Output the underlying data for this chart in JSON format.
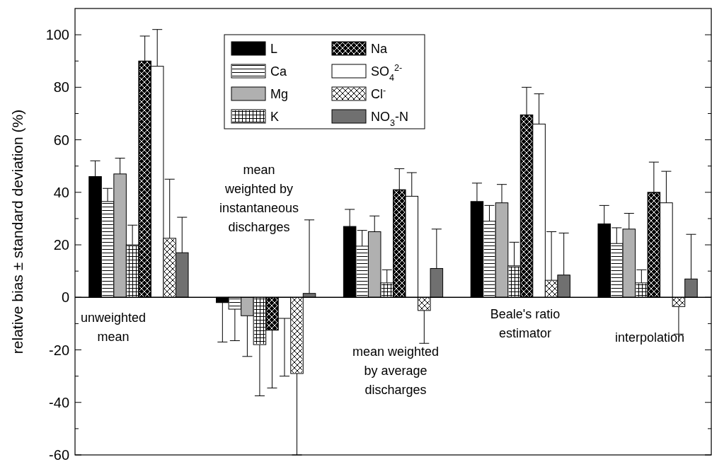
{
  "chart_data": {
    "type": "bar",
    "ylabel": "relative bias ± standard deviation (%)",
    "categories": [
      null,
      null,
      null,
      null,
      null
    ],
    "series": [
      {
        "name": "L",
        "color": "#000000",
        "values": [
          46,
          -2,
          27,
          36.5,
          28
        ],
        "errors": [
          [
            46,
            52
          ],
          [
            -17,
            -2
          ],
          [
            27,
            33.5
          ],
          [
            36.5,
            43.5
          ],
          [
            28,
            35
          ]
        ]
      },
      {
        "name": "Ca",
        "color": "#ffffff",
        "values": [
          36.5,
          -4.5,
          19.5,
          29,
          20.5
        ],
        "errors": [
          [
            36.5,
            41.5
          ],
          [
            -16.5,
            -4.5
          ],
          [
            19.5,
            25.5
          ],
          [
            29,
            35
          ],
          [
            20.5,
            26.5
          ]
        ]
      },
      {
        "name": "Mg",
        "color": "#b0b0b0",
        "values": [
          47,
          -7,
          25,
          36,
          26
        ],
        "errors": [
          [
            47,
            53
          ],
          [
            -22.5,
            -7
          ],
          [
            25,
            31
          ],
          [
            36,
            43
          ],
          [
            26,
            32
          ]
        ]
      },
      {
        "name": "K",
        "color": "#ffffff",
        "values": [
          20,
          -18,
          5.5,
          12,
          5.5
        ],
        "errors": [
          [
            20,
            27.5
          ],
          [
            -37.5,
            -18
          ],
          [
            5.5,
            10.5
          ],
          [
            12,
            21
          ],
          [
            5.5,
            10.5
          ]
        ]
      },
      {
        "name": "Na",
        "color": "#000000",
        "values": [
          90,
          -12.5,
          41,
          69.5,
          40
        ],
        "errors": [
          [
            90,
            99.5
          ],
          [
            -34.5,
            -12.5
          ],
          [
            41,
            49
          ],
          [
            69.5,
            80
          ],
          [
            40,
            51.5
          ]
        ]
      },
      {
        "name": "SO$_{4}$$^{2-}$",
        "color": "#ffffff",
        "values": [
          88,
          -8,
          38.5,
          66,
          36
        ],
        "errors": [
          [
            88,
            102
          ],
          [
            -30,
            -8
          ],
          [
            38.5,
            47.5
          ],
          [
            66,
            77.5
          ],
          [
            36,
            48
          ]
        ]
      },
      {
        "name": "Cl$^{-}$",
        "color": "#ffffff",
        "values": [
          22.5,
          -29,
          -5,
          6.5,
          -3.5
        ],
        "errors": [
          [
            22.5,
            45
          ],
          [
            -60,
            -29
          ],
          [
            -17.5,
            -5
          ],
          [
            6.5,
            25
          ],
          [
            -14,
            -3.5
          ]
        ]
      },
      {
        "name": "NO$_{3}$-N",
        "color": "#707070",
        "values": [
          17,
          1.5,
          11,
          8.5,
          7
        ],
        "errors": [
          [
            17,
            30.5
          ],
          [
            1.5,
            29.5
          ],
          [
            11,
            26
          ],
          [
            8.5,
            24.5
          ],
          [
            7,
            24
          ]
        ]
      }
    ],
    "ylim": [
      -60,
      110
    ],
    "yticks": [
      -60,
      {
        "value": -50,
        "label": null
      },
      -40,
      {
        "value": -30,
        "label": null
      },
      -20,
      {
        "value": -10,
        "label": null
      },
      0,
      {
        "value": 10,
        "label": null
      },
      20,
      {
        "value": 30,
        "label": null
      },
      40,
      {
        "value": 50,
        "label": null
      },
      60,
      {
        "value": 70,
        "label": null
      },
      80,
      {
        "value": 90,
        "label": null
      },
      100
    ],
    "legend": "top",
    "annotations": [
      "unweighted\nmean",
      "mean\nweighted by\ninstantaneous\ndischarges",
      "mean weighted\nby average\ndischarges",
      "Beale's ratio\nestimator",
      "interpolation"
    ]
  }
}
